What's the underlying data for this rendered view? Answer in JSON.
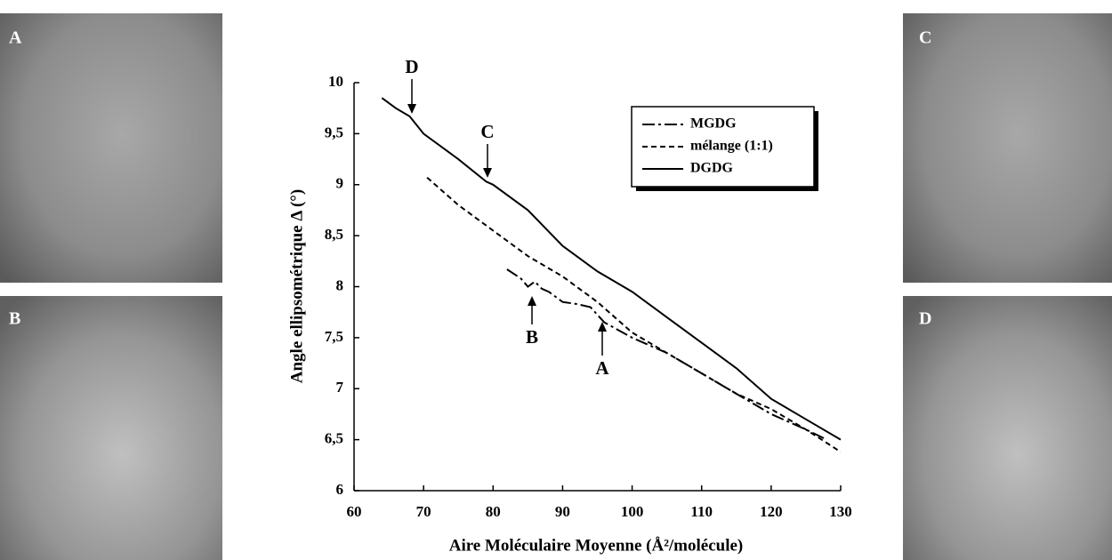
{
  "panels": [
    "A",
    "B",
    "C",
    "D"
  ],
  "chart_data": {
    "type": "line",
    "x_label": "Aire Moléculaire Moyenne (Å²/molécule)",
    "y_label": "Angle ellipsométrique Δ (°)",
    "xlim": [
      60,
      130
    ],
    "xticks": [
      60,
      70,
      80,
      90,
      100,
      110,
      120,
      130
    ],
    "ylim": [
      6,
      10
    ],
    "yticks": [
      6,
      {
        "value": 6.5,
        "label": "6,5"
      },
      7,
      {
        "value": 7.5,
        "label": "7,5"
      },
      8,
      {
        "value": 8.5,
        "label": "8,5"
      },
      9,
      {
        "value": 9.5,
        "label": "9,5"
      },
      10
    ],
    "legend": "top-right",
    "series": [
      {
        "name": "MGDG",
        "color": "#000000",
        "dash": "14 4 3 4",
        "x": [
          82,
          84,
          85,
          86,
          87,
          88,
          90,
          92,
          94,
          96,
          100,
          105,
          110,
          115,
          120,
          125,
          128
        ],
        "values": [
          8.17,
          8.08,
          8.0,
          8.05,
          7.98,
          7.95,
          7.85,
          7.83,
          7.8,
          7.65,
          7.5,
          7.35,
          7.15,
          6.95,
          6.75,
          6.6,
          6.5
        ]
      },
      {
        "name": "mélange (1:1)",
        "color": "#000000",
        "dash": "6 4",
        "x": [
          70.5,
          75,
          80,
          85,
          90,
          95,
          100,
          105,
          110,
          115,
          120,
          125,
          130
        ],
        "values": [
          9.07,
          8.8,
          8.55,
          8.3,
          8.1,
          7.85,
          7.55,
          7.35,
          7.15,
          6.95,
          6.8,
          6.6,
          6.38
        ]
      },
      {
        "name": "DGDG",
        "color": "#000000",
        "dash": "none",
        "x": [
          64,
          66,
          68,
          70,
          75,
          79,
          80,
          85,
          90,
          95,
          100,
          105,
          110,
          115,
          120,
          125,
          130
        ],
        "values": [
          9.85,
          9.75,
          9.67,
          9.5,
          9.25,
          9.03,
          9.0,
          8.75,
          8.4,
          8.15,
          7.95,
          7.7,
          7.45,
          7.2,
          6.9,
          6.7,
          6.5
        ]
      }
    ],
    "annotations": [
      "D",
      "C",
      "B",
      "A"
    ]
  }
}
